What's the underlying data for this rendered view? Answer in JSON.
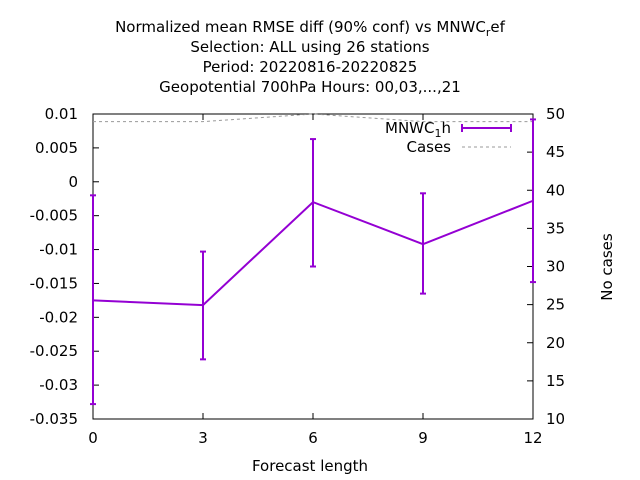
{
  "chart_data": {
    "type": "line",
    "title_lines": [
      "Normalized mean RMSE diff (90% conf) vs MNWC_ref",
      "Selection: ALL using    26 stations",
      "Period: 20220816-20220825",
      "Geopotential 700hPa   Hours:  00,03,...,21"
    ],
    "xlabel": "Forecast length",
    "ylabel": "",
    "y2label": "No cases",
    "x_ticks": [
      "0",
      "3",
      "6",
      "9",
      "12"
    ],
    "y_ticks": [
      "0.01",
      "0.005",
      "0",
      "-0.005",
      "-0.01",
      "-0.015",
      "-0.02",
      "-0.025",
      "-0.03",
      "-0.035"
    ],
    "y2_ticks": [
      "50",
      "45",
      "40",
      "35",
      "30",
      "25",
      "20",
      "15",
      "10"
    ],
    "xlim": [
      0,
      12
    ],
    "ylim": [
      -0.035,
      0.01
    ],
    "y2lim": [
      10,
      50
    ],
    "grid": false,
    "legend_position": "top-right",
    "series": [
      {
        "name": "MNWC_1h",
        "color": "#9400d3",
        "axis": "y",
        "x": [
          0,
          3,
          6,
          9,
          12
        ],
        "y": [
          -0.0175,
          -0.0182,
          -0.003,
          -0.0092,
          -0.0028
        ],
        "err_low": [
          -0.0328,
          -0.0262,
          -0.0125,
          -0.0165,
          -0.0148
        ],
        "err_high": [
          -0.002,
          -0.0103,
          0.0063,
          -0.0017,
          0.0092
        ]
      },
      {
        "name": "Cases",
        "color": "#999999",
        "axis": "y2",
        "x": [
          0,
          3,
          6,
          9,
          12
        ],
        "y": [
          49,
          49,
          50,
          49,
          49
        ]
      }
    ]
  }
}
